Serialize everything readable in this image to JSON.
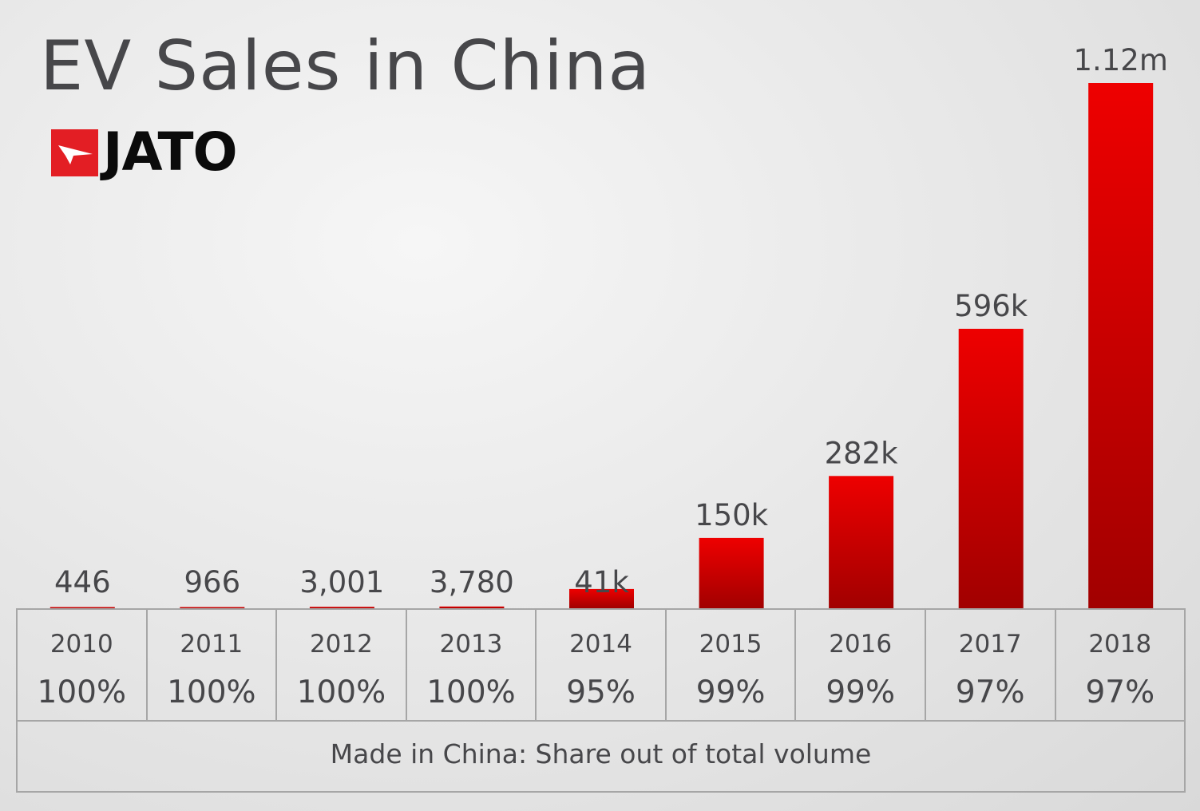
{
  "title": "EV Sales in China",
  "logo": {
    "text": "JATO",
    "icon": "jato-logo-icon",
    "color": "#e31e24"
  },
  "chart_data": {
    "type": "bar",
    "title": "EV Sales in China",
    "categories": [
      "2010",
      "2011",
      "2012",
      "2013",
      "2014",
      "2015",
      "2016",
      "2017",
      "2018"
    ],
    "values": [
      446,
      966,
      3001,
      3780,
      41000,
      150000,
      282000,
      596000,
      1120000
    ],
    "data_labels": [
      "446",
      "966",
      "3,001",
      "3,780",
      "41k",
      "150k",
      "282k",
      "596k",
      "1.12m"
    ],
    "made_in_china_share": [
      "100%",
      "100%",
      "100%",
      "100%",
      "95%",
      "99%",
      "99%",
      "97%",
      "97%"
    ],
    "ylim": [
      0,
      1120000
    ],
    "grid": false,
    "legend": "none",
    "bar_color_top": "#ee0000",
    "bar_color_bottom": "#a10000"
  },
  "table": {
    "footer": "Made in China: Share out of total volume"
  }
}
